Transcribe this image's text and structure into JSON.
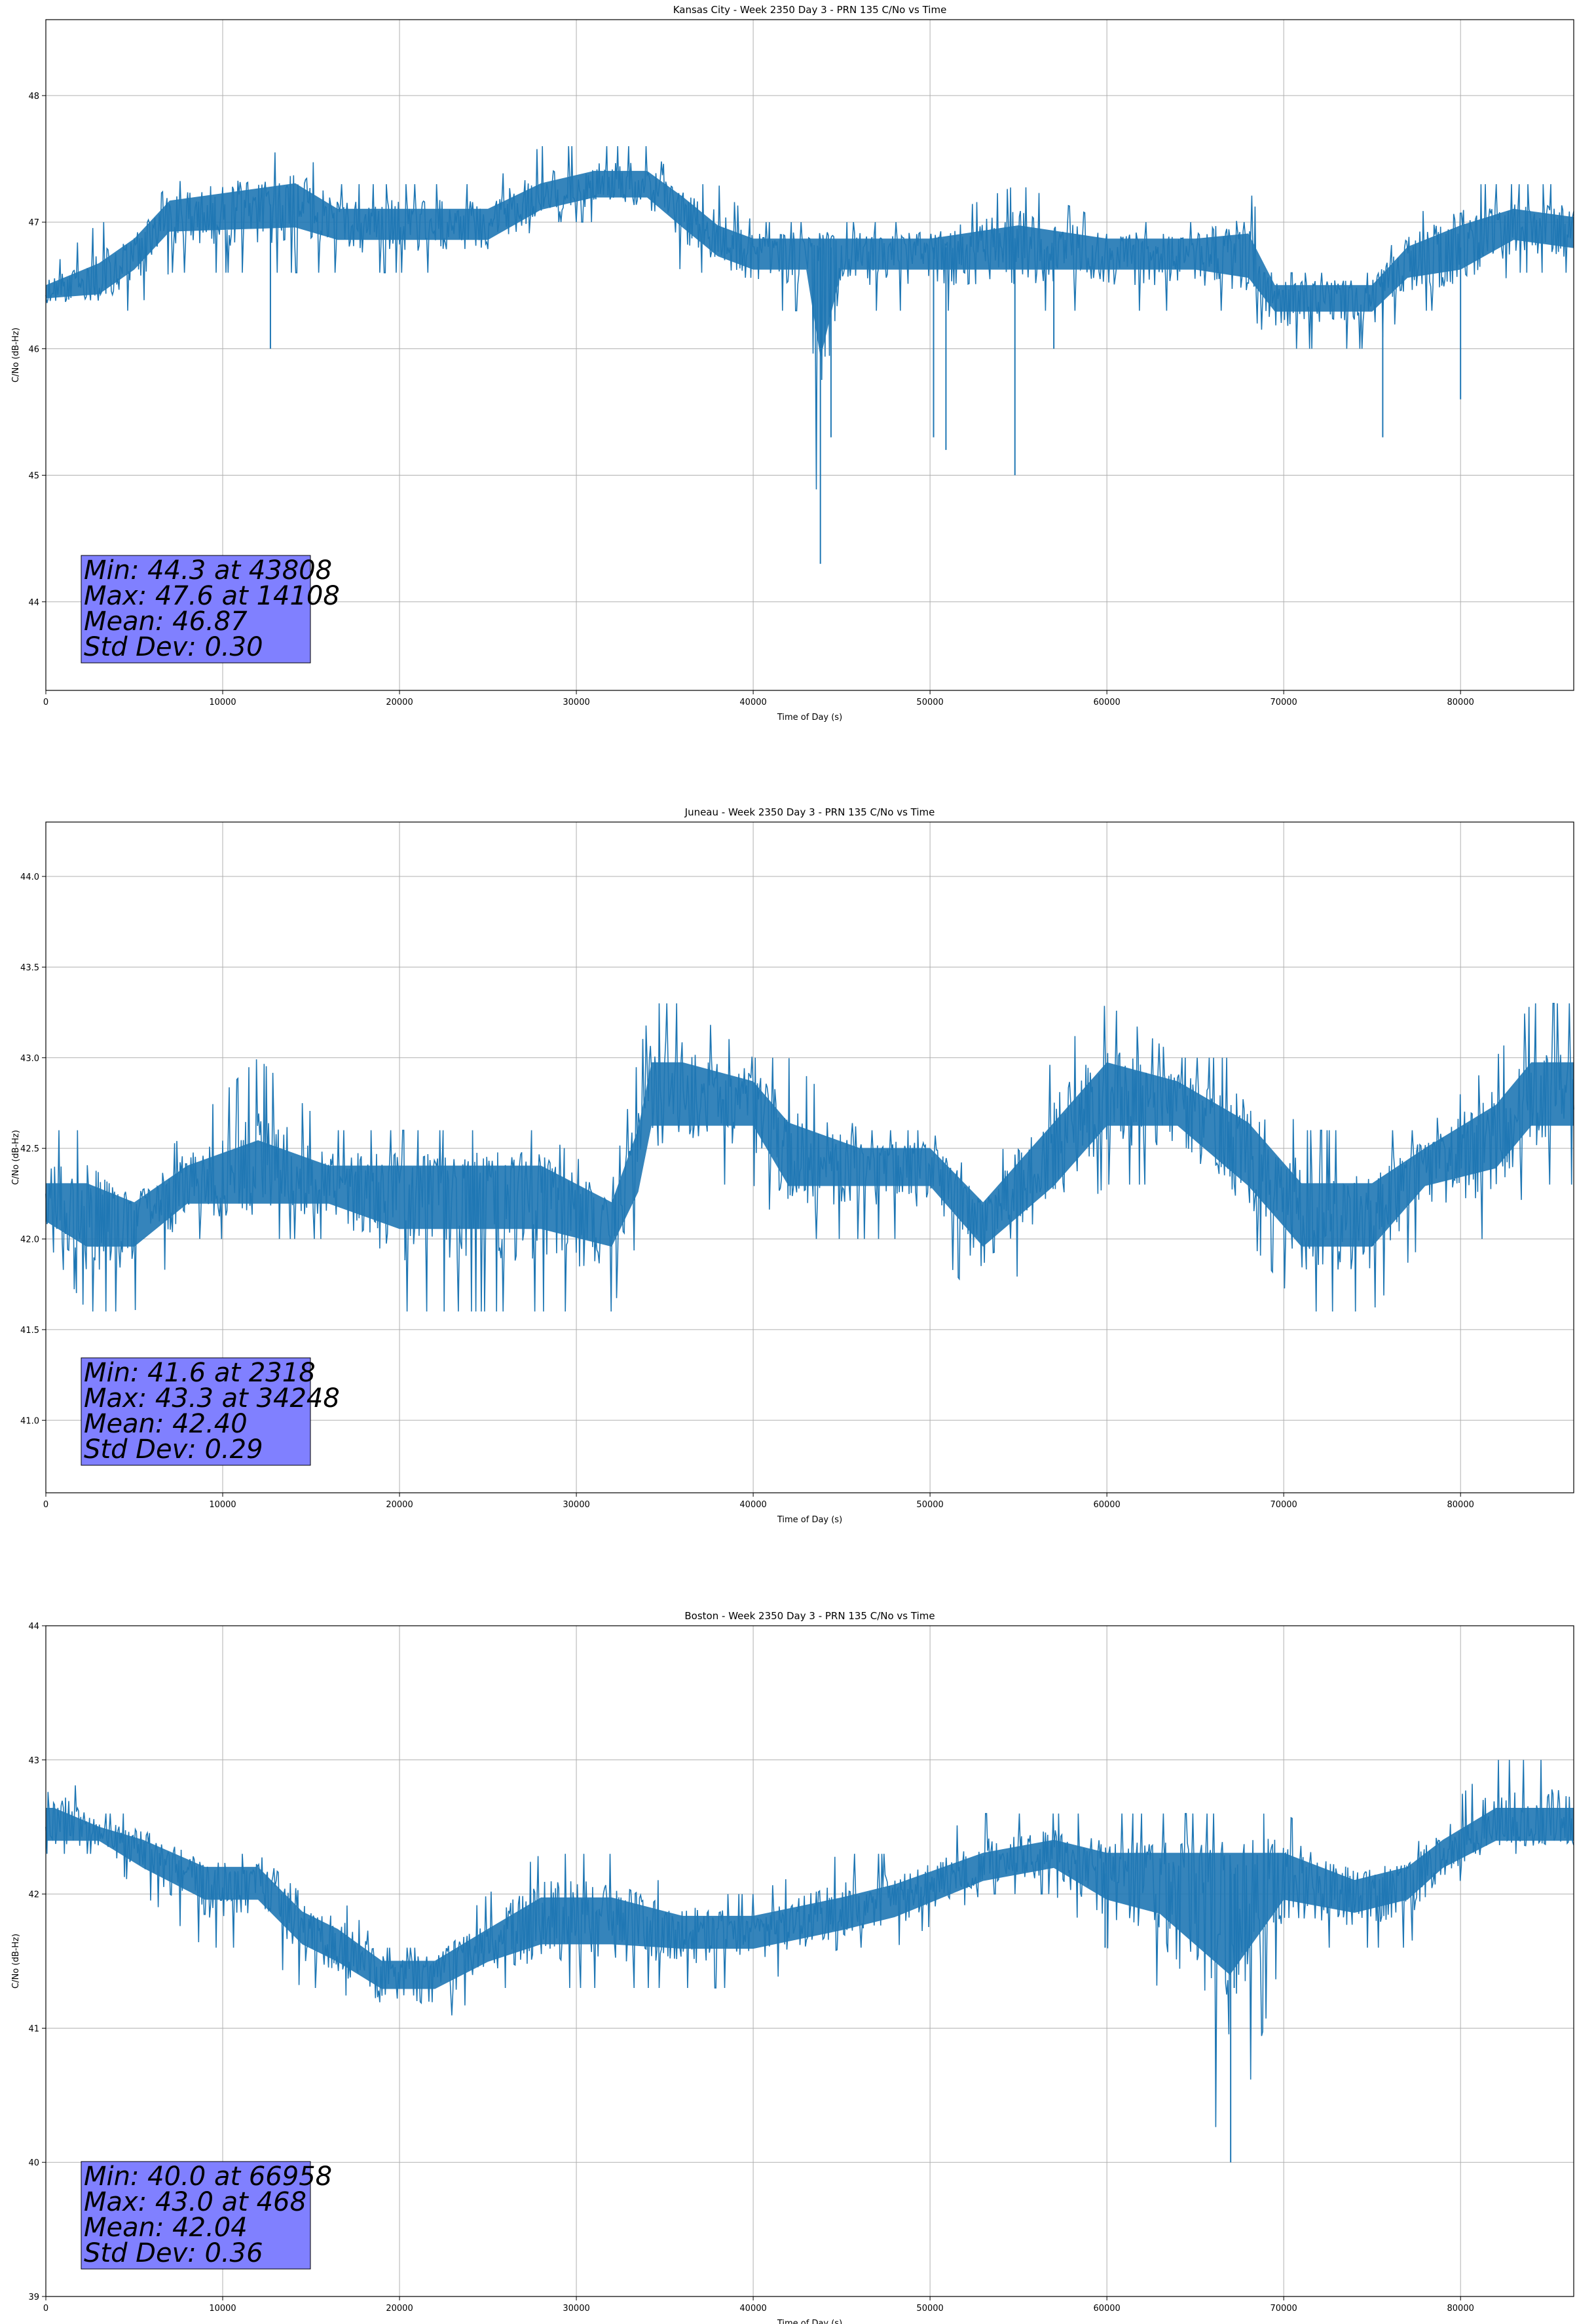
{
  "chart_data": [
    {
      "type": "line",
      "title": "Kansas City - Week 2350 Day 3 - PRN 135 C/No vs Time",
      "xlabel": "Time of Day (s)",
      "ylabel": "C/No (dB-Hz)",
      "xlim": [
        0,
        86400
      ],
      "ylim": [
        43.3,
        48.6
      ],
      "xticks": [
        0,
        10000,
        20000,
        30000,
        40000,
        50000,
        60000,
        70000,
        80000
      ],
      "yticks": [
        44,
        45,
        46,
        47,
        48
      ],
      "ytick_labels": [
        "44",
        "45",
        "46",
        "47",
        "48"
      ],
      "grid": true,
      "series_color": "#1f77b4",
      "series": [
        {
          "name": "C/No",
          "x": [
            0,
            3000,
            5000,
            7000,
            14108,
            16500,
            20000,
            25000,
            28000,
            31000,
            34000,
            36000,
            38000,
            40000,
            43000,
            43808,
            45000,
            50000,
            55000,
            60000,
            65000,
            68000,
            69500,
            72000,
            75000,
            77000,
            80000,
            83000,
            86400
          ],
          "y": [
            46.45,
            46.5,
            46.8,
            47.1,
            47.15,
            47.0,
            47.0,
            47.0,
            47.15,
            47.3,
            47.3,
            47.15,
            46.8,
            46.8,
            46.8,
            46.8,
            46.8,
            46.8,
            46.8,
            46.8,
            46.8,
            46.7,
            46.45,
            46.45,
            46.45,
            46.7,
            46.8,
            47.0,
            46.9
          ],
          "low": [
            46.3,
            46.3,
            46.3,
            46.6,
            46.6,
            46.6,
            46.6,
            46.6,
            47.0,
            47.0,
            47.0,
            46.6,
            46.6,
            46.3,
            46.3,
            44.3,
            46.3,
            46.3,
            46.3,
            46.3,
            46.3,
            46.3,
            46.0,
            46.0,
            46.0,
            46.3,
            46.3,
            46.6,
            46.6
          ],
          "high": [
            46.6,
            47.0,
            47.0,
            47.3,
            47.6,
            47.3,
            47.3,
            47.3,
            47.6,
            47.6,
            47.6,
            47.3,
            47.3,
            47.0,
            47.0,
            47.0,
            47.0,
            47.0,
            47.3,
            47.0,
            47.0,
            47.3,
            46.6,
            46.6,
            46.6,
            47.0,
            47.3,
            47.3,
            47.3
          ],
          "dips": [
            [
              12700,
              46.0
            ],
            [
              43800,
              44.3
            ],
            [
              44400,
              45.3
            ],
            [
              50200,
              45.3
            ],
            [
              50900,
              45.2
            ],
            [
              54800,
              45.0
            ],
            [
              57000,
              46.0
            ],
            [
              75600,
              45.3
            ],
            [
              80000,
              45.6
            ]
          ]
        }
      ],
      "stats": {
        "min": "Min: 44.3 at 43808",
        "max": "Max: 47.6 at 14108",
        "mean": "Mean: 46.87",
        "std": "Std Dev: 0.30"
      }
    },
    {
      "type": "line",
      "title": "Juneau - Week 2350 Day 3 - PRN 135 C/No vs Time",
      "xlabel": "Time of Day (s)",
      "ylabel": "C/No (dB-Hz)",
      "xlim": [
        0,
        86400
      ],
      "ylim": [
        40.6,
        44.3
      ],
      "xticks": [
        0,
        10000,
        20000,
        30000,
        40000,
        50000,
        60000,
        70000,
        80000
      ],
      "yticks": [
        41.0,
        41.5,
        42.0,
        42.5,
        43.0,
        43.5,
        44.0
      ],
      "ytick_labels": [
        "41.0",
        "41.5",
        "42.0",
        "42.5",
        "43.0",
        "43.5",
        "44.0"
      ],
      "grid": true,
      "series_color": "#1f77b4",
      "series": [
        {
          "name": "C/No",
          "x": [
            0,
            2318,
            5000,
            8000,
            12000,
            16000,
            20000,
            24000,
            28000,
            32000,
            33500,
            34248,
            36000,
            40000,
            42000,
            46000,
            50000,
            53000,
            57000,
            60000,
            64000,
            68000,
            71000,
            75000,
            78000,
            82000,
            84000,
            86400
          ],
          "y": [
            42.15,
            42.15,
            42.15,
            42.3,
            42.3,
            42.3,
            42.3,
            42.3,
            42.3,
            42.15,
            42.4,
            42.8,
            42.8,
            42.8,
            42.45,
            42.45,
            42.45,
            42.15,
            42.45,
            42.8,
            42.8,
            42.45,
            42.15,
            42.15,
            42.45,
            42.6,
            42.8,
            42.8
          ],
          "low": [
            42.0,
            41.6,
            41.6,
            42.0,
            42.0,
            42.0,
            41.6,
            41.6,
            41.6,
            41.6,
            42.0,
            42.3,
            42.3,
            42.3,
            42.0,
            42.0,
            42.0,
            41.6,
            42.0,
            42.3,
            42.3,
            42.0,
            41.6,
            41.6,
            42.0,
            42.0,
            42.3,
            42.3
          ],
          "high": [
            42.6,
            42.6,
            42.3,
            42.6,
            43.0,
            42.6,
            42.6,
            42.6,
            42.6,
            42.3,
            43.0,
            43.3,
            43.3,
            43.0,
            43.0,
            42.6,
            42.6,
            42.3,
            43.0,
            43.3,
            43.0,
            43.0,
            42.6,
            42.6,
            42.6,
            43.0,
            43.3,
            43.3
          ],
          "dips": []
        }
      ],
      "stats": {
        "min": "Min: 41.6 at 2318",
        "max": "Max: 43.3 at 34248",
        "mean": "Mean: 42.40",
        "std": "Std Dev: 0.29"
      }
    },
    {
      "type": "line",
      "title": "Boston - Week 2350 Day 3 - PRN 135 C/No vs Time",
      "xlabel": "Time of Day (s)",
      "ylabel": "C/No (dB-Hz)",
      "xlim": [
        0,
        86400
      ],
      "ylim": [
        39,
        44
      ],
      "xticks": [
        0,
        10000,
        20000,
        30000,
        40000,
        50000,
        60000,
        70000,
        80000
      ],
      "yticks": [
        39,
        40,
        41,
        42,
        43,
        44
      ],
      "ytick_labels": [
        "39",
        "40",
        "41",
        "42",
        "43",
        "44"
      ],
      "grid": true,
      "series_color": "#1f77b4",
      "series": [
        {
          "name": "C/No",
          "x": [
            0,
            468,
            3000,
            5500,
            9000,
            12000,
            14500,
            16500,
            19000,
            22000,
            25000,
            28000,
            32000,
            36000,
            40000,
            45000,
            48000,
            53000,
            57000,
            60000,
            63000,
            66958,
            70000,
            74000,
            77000,
            79000,
            82000,
            86400
          ],
          "y": [
            42.45,
            42.45,
            42.45,
            42.3,
            42.15,
            42.15,
            41.8,
            41.6,
            41.45,
            41.45,
            41.6,
            41.8,
            41.8,
            41.75,
            41.75,
            41.8,
            41.95,
            42.15,
            42.3,
            42.15,
            42.15,
            42.15,
            42.15,
            42.0,
            42.15,
            42.3,
            42.45,
            42.45
          ],
          "low": [
            42.3,
            42.3,
            42.3,
            42.0,
            41.6,
            41.6,
            41.3,
            41.3,
            41.0,
            41.0,
            41.3,
            41.3,
            41.3,
            41.3,
            41.3,
            41.6,
            41.6,
            42.0,
            42.0,
            41.6,
            41.3,
            40.0,
            41.6,
            41.6,
            41.6,
            42.0,
            42.3,
            42.3
          ],
          "high": [
            43.0,
            43.0,
            42.6,
            42.6,
            42.3,
            42.3,
            42.0,
            42.0,
            41.6,
            41.6,
            42.0,
            42.3,
            42.3,
            42.0,
            42.0,
            42.3,
            42.3,
            42.6,
            42.6,
            42.6,
            42.6,
            42.6,
            42.6,
            42.3,
            42.3,
            42.6,
            43.0,
            43.0
          ],
          "dips": [
            [
              59900,
              41.6
            ],
            [
              67000,
              40.0
            ],
            [
              67200,
              41.3
            ]
          ]
        }
      ],
      "stats": {
        "min": "Min: 40.0 at 66958",
        "max": "Max: 43.0 at 468",
        "mean": "Mean: 42.04",
        "std": "Std Dev: 0.36"
      }
    }
  ]
}
